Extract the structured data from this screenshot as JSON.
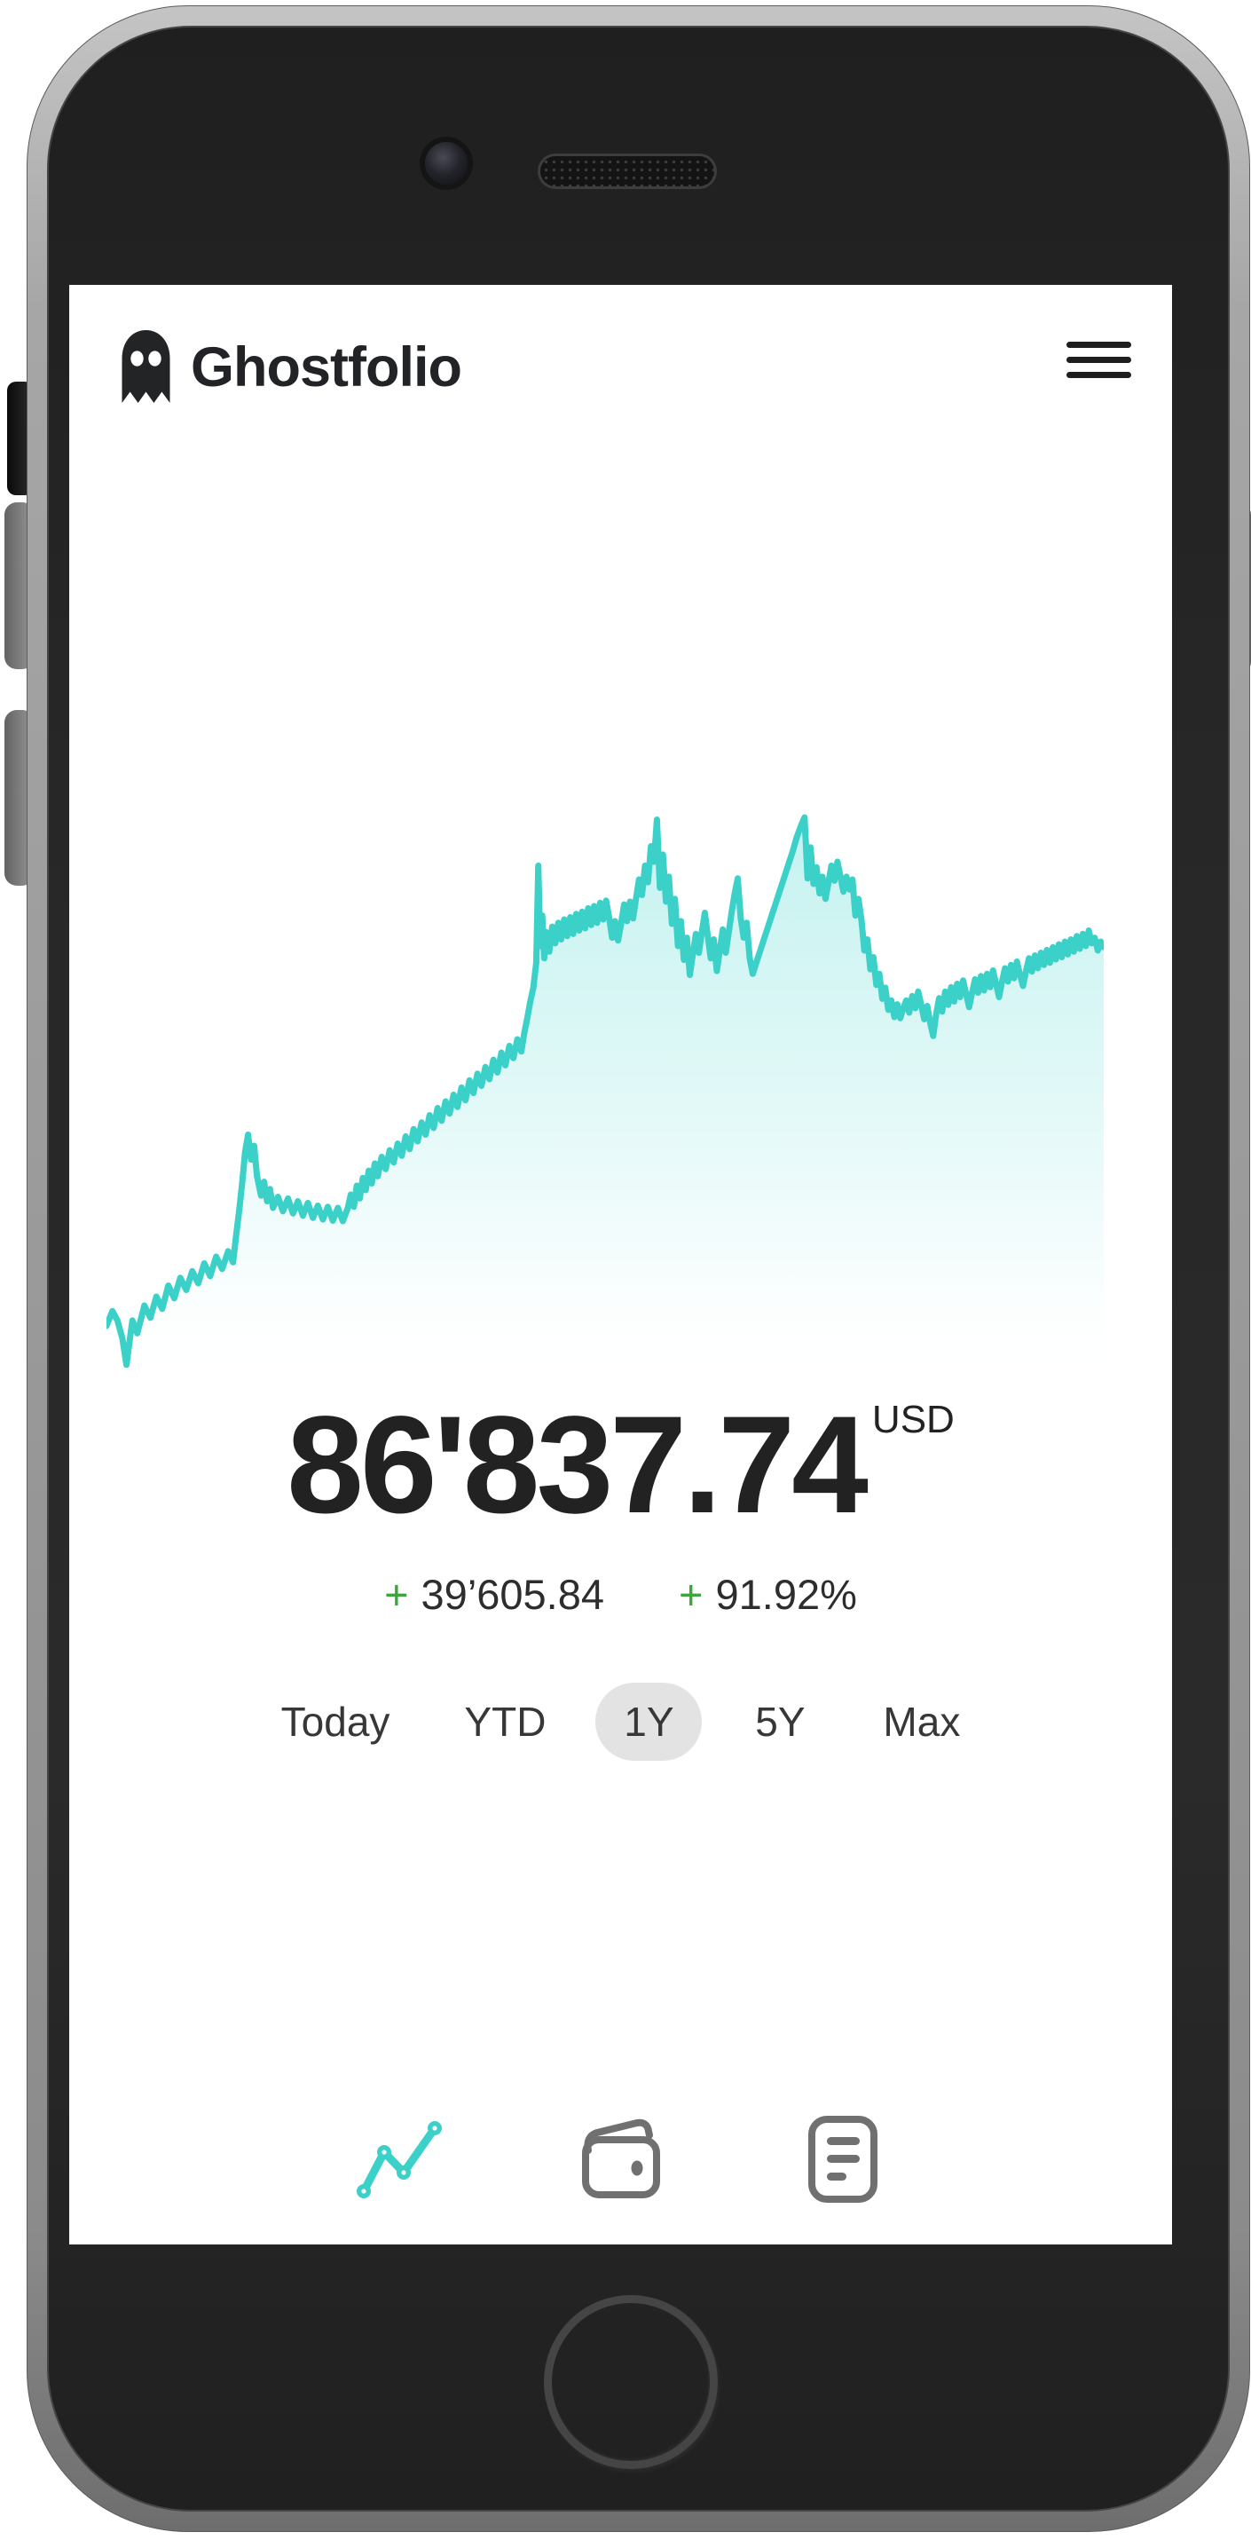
{
  "app": {
    "title": "Ghostfolio"
  },
  "header": {
    "logo_icon": "ghost-icon",
    "menu_icon": "hamburger-menu-icon"
  },
  "portfolio": {
    "value": "86'837.74",
    "currency": "USD",
    "change_sign": "+",
    "change_absolute": "39’605.84",
    "change_percent": "91.92%"
  },
  "periods": {
    "selected_index": 2,
    "items": [
      {
        "label": "Today"
      },
      {
        "label": "YTD"
      },
      {
        "label": "1Y"
      },
      {
        "label": "5Y"
      },
      {
        "label": "Max"
      }
    ]
  },
  "nav": {
    "items": [
      {
        "icon": "performance-chart-icon",
        "active": true
      },
      {
        "icon": "wallet-icon",
        "active": false
      },
      {
        "icon": "report-icon",
        "active": false
      }
    ]
  },
  "colors": {
    "accent_teal": "#3bd0c8",
    "positive_green": "#3da53d",
    "text_dark": "#222222",
    "pill_gray": "#e3e3e3",
    "nav_icon_gray": "#707070"
  },
  "chart_data": {
    "type": "area",
    "title": "",
    "xlabel": "",
    "ylabel": "",
    "axes_hidden": true,
    "legend": false,
    "line_color": "#3bd0c8",
    "fill_style": "teal gradient fading to transparent toward bottom",
    "end_value_label": "86'837.74",
    "period": "1Y",
    "points_note": "normalized coords, x 0-1000 left to right, y 0-1000 top to bottom",
    "points": [
      [
        0,
        925
      ],
      [
        6,
        898
      ],
      [
        11,
        915
      ],
      [
        16,
        948
      ],
      [
        20,
        995
      ],
      [
        26,
        915
      ],
      [
        31,
        938
      ],
      [
        38,
        888
      ],
      [
        44,
        910
      ],
      [
        50,
        872
      ],
      [
        56,
        894
      ],
      [
        62,
        852
      ],
      [
        68,
        875
      ],
      [
        74,
        838
      ],
      [
        80,
        860
      ],
      [
        86,
        826
      ],
      [
        92,
        848
      ],
      [
        98,
        812
      ],
      [
        104,
        835
      ],
      [
        110,
        800
      ],
      [
        116,
        822
      ],
      [
        122,
        790
      ],
      [
        127,
        810
      ],
      [
        130,
        762
      ],
      [
        133,
        718
      ],
      [
        136,
        668
      ],
      [
        139,
        612
      ],
      [
        142,
        580
      ],
      [
        145,
        625
      ],
      [
        148,
        600
      ],
      [
        151,
        655
      ],
      [
        155,
        690
      ],
      [
        158,
        665
      ],
      [
        161,
        700
      ],
      [
        164,
        678
      ],
      [
        167,
        712
      ],
      [
        172,
        692
      ],
      [
        177,
        718
      ],
      [
        182,
        695
      ],
      [
        187,
        722
      ],
      [
        192,
        700
      ],
      [
        197,
        726
      ],
      [
        202,
        703
      ],
      [
        207,
        730
      ],
      [
        212,
        708
      ],
      [
        217,
        733
      ],
      [
        222,
        710
      ],
      [
        227,
        735
      ],
      [
        232,
        712
      ],
      [
        237,
        736
      ],
      [
        242,
        712
      ],
      [
        245,
        688
      ],
      [
        248,
        710
      ],
      [
        251,
        672
      ],
      [
        254,
        695
      ],
      [
        257,
        658
      ],
      [
        260,
        680
      ],
      [
        263,
        645
      ],
      [
        266,
        668
      ],
      [
        269,
        632
      ],
      [
        272,
        655
      ],
      [
        276,
        620
      ],
      [
        280,
        642
      ],
      [
        284,
        608
      ],
      [
        288,
        630
      ],
      [
        292,
        596
      ],
      [
        296,
        618
      ],
      [
        300,
        583
      ],
      [
        304,
        606
      ],
      [
        308,
        570
      ],
      [
        312,
        592
      ],
      [
        316,
        558
      ],
      [
        320,
        580
      ],
      [
        324,
        545
      ],
      [
        328,
        568
      ],
      [
        332,
        532
      ],
      [
        336,
        555
      ],
      [
        340,
        520
      ],
      [
        344,
        542
      ],
      [
        348,
        508
      ],
      [
        352,
        530
      ],
      [
        356,
        495
      ],
      [
        360,
        518
      ],
      [
        364,
        482
      ],
      [
        368,
        505
      ],
      [
        372,
        470
      ],
      [
        376,
        492
      ],
      [
        380,
        458
      ],
      [
        384,
        480
      ],
      [
        388,
        445
      ],
      [
        392,
        468
      ],
      [
        396,
        432
      ],
      [
        400,
        455
      ],
      [
        404,
        420
      ],
      [
        408,
        442
      ],
      [
        412,
        408
      ],
      [
        416,
        430
      ],
      [
        419,
        396
      ],
      [
        422,
        370
      ],
      [
        425,
        340
      ],
      [
        428,
        315
      ],
      [
        431,
        270
      ],
      [
        433,
        95
      ],
      [
        435,
        240
      ],
      [
        437,
        185
      ],
      [
        439,
        262
      ],
      [
        441,
        215
      ],
      [
        444,
        250
      ],
      [
        447,
        205
      ],
      [
        450,
        235
      ],
      [
        453,
        198
      ],
      [
        456,
        228
      ],
      [
        459,
        192
      ],
      [
        462,
        222
      ],
      [
        465,
        188
      ],
      [
        468,
        218
      ],
      [
        471,
        182
      ],
      [
        474,
        212
      ],
      [
        477,
        178
      ],
      [
        480,
        208
      ],
      [
        483,
        172
      ],
      [
        486,
        202
      ],
      [
        489,
        168
      ],
      [
        492,
        198
      ],
      [
        495,
        162
      ],
      [
        498,
        192
      ],
      [
        501,
        158
      ],
      [
        504,
        188
      ],
      [
        507,
        225
      ],
      [
        510,
        195
      ],
      [
        513,
        230
      ],
      [
        516,
        200
      ],
      [
        519,
        165
      ],
      [
        522,
        195
      ],
      [
        525,
        160
      ],
      [
        528,
        190
      ],
      [
        531,
        155
      ],
      [
        534,
        120
      ],
      [
        537,
        148
      ],
      [
        540,
        95
      ],
      [
        543,
        125
      ],
      [
        546,
        60
      ],
      [
        549,
        88
      ],
      [
        552,
        12
      ],
      [
        555,
        135
      ],
      [
        558,
        75
      ],
      [
        561,
        160
      ],
      [
        564,
        115
      ],
      [
        567,
        200
      ],
      [
        570,
        155
      ],
      [
        573,
        240
      ],
      [
        576,
        195
      ],
      [
        579,
        265
      ],
      [
        582,
        225
      ],
      [
        585,
        292
      ],
      [
        588,
        255
      ],
      [
        591,
        218
      ],
      [
        594,
        252
      ],
      [
        597,
        215
      ],
      [
        600,
        180
      ],
      [
        603,
        222
      ],
      [
        606,
        262
      ],
      [
        609,
        228
      ],
      [
        612,
        285
      ],
      [
        615,
        248
      ],
      [
        618,
        210
      ],
      [
        621,
        252
      ],
      [
        624,
        215
      ],
      [
        627,
        178
      ],
      [
        630,
        145
      ],
      [
        633,
        118
      ],
      [
        636,
        190
      ],
      [
        639,
        225
      ],
      [
        642,
        198
      ],
      [
        645,
        262
      ],
      [
        648,
        290
      ],
      [
        652,
        268
      ],
      [
        656,
        246
      ],
      [
        660,
        224
      ],
      [
        664,
        202
      ],
      [
        668,
        180
      ],
      [
        672,
        158
      ],
      [
        676,
        136
      ],
      [
        680,
        114
      ],
      [
        684,
        92
      ],
      [
        688,
        70
      ],
      [
        692,
        45
      ],
      [
        696,
        25
      ],
      [
        700,
        8
      ],
      [
        703,
        118
      ],
      [
        706,
        62
      ],
      [
        709,
        128
      ],
      [
        712,
        98
      ],
      [
        715,
        145
      ],
      [
        718,
        115
      ],
      [
        721,
        155
      ],
      [
        724,
        125
      ],
      [
        727,
        95
      ],
      [
        730,
        122
      ],
      [
        733,
        88
      ],
      [
        736,
        115
      ],
      [
        739,
        142
      ],
      [
        742,
        115
      ],
      [
        745,
        138
      ],
      [
        748,
        120
      ],
      [
        751,
        185
      ],
      [
        754,
        155
      ],
      [
        757,
        192
      ],
      [
        760,
        248
      ],
      [
        763,
        228
      ],
      [
        766,
        282
      ],
      [
        769,
        260
      ],
      [
        772,
        310
      ],
      [
        775,
        290
      ],
      [
        778,
        335
      ],
      [
        781,
        315
      ],
      [
        784,
        355
      ],
      [
        787,
        338
      ],
      [
        790,
        368
      ],
      [
        793,
        345
      ],
      [
        796,
        370
      ],
      [
        799,
        352
      ],
      [
        802,
        338
      ],
      [
        805,
        360
      ],
      [
        808,
        330
      ],
      [
        811,
        352
      ],
      [
        814,
        322
      ],
      [
        817,
        346
      ],
      [
        820,
        372
      ],
      [
        823,
        348
      ],
      [
        826,
        378
      ],
      [
        829,
        402
      ],
      [
        832,
        362
      ],
      [
        835,
        334
      ],
      [
        838,
        358
      ],
      [
        841,
        322
      ],
      [
        844,
        346
      ],
      [
        847,
        314
      ],
      [
        850,
        340
      ],
      [
        853,
        308
      ],
      [
        856,
        332
      ],
      [
        859,
        302
      ],
      [
        862,
        326
      ],
      [
        865,
        350
      ],
      [
        868,
        324
      ],
      [
        871,
        300
      ],
      [
        874,
        324
      ],
      [
        877,
        294
      ],
      [
        880,
        320
      ],
      [
        883,
        290
      ],
      [
        886,
        314
      ],
      [
        889,
        284
      ],
      [
        892,
        308
      ],
      [
        895,
        332
      ],
      [
        898,
        304
      ],
      [
        901,
        280
      ],
      [
        904,
        304
      ],
      [
        907,
        274
      ],
      [
        910,
        298
      ],
      [
        913,
        268
      ],
      [
        916,
        292
      ],
      [
        919,
        312
      ],
      [
        922,
        286
      ],
      [
        925,
        262
      ],
      [
        928,
        286
      ],
      [
        931,
        257
      ],
      [
        934,
        280
      ],
      [
        937,
        252
      ],
      [
        940,
        274
      ],
      [
        943,
        247
      ],
      [
        946,
        270
      ],
      [
        949,
        242
      ],
      [
        952,
        264
      ],
      [
        955,
        237
      ],
      [
        958,
        260
      ],
      [
        961,
        232
      ],
      [
        964,
        255
      ],
      [
        967,
        228
      ],
      [
        970,
        250
      ],
      [
        973,
        222
      ],
      [
        976,
        245
      ],
      [
        979,
        218
      ],
      [
        982,
        240
      ],
      [
        985,
        212
      ],
      [
        988,
        235
      ],
      [
        991,
        225
      ],
      [
        994,
        248
      ],
      [
        997,
        232
      ],
      [
        1000,
        242
      ]
    ]
  }
}
